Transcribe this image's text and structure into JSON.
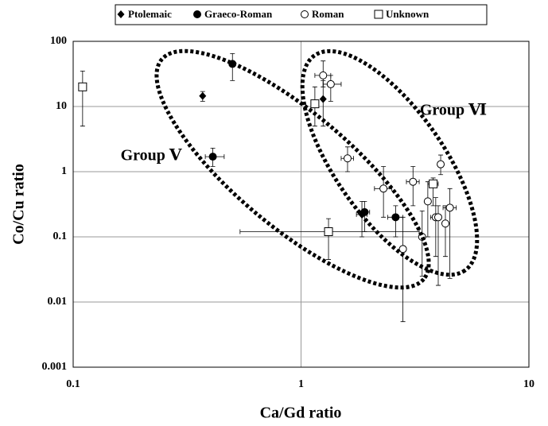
{
  "chart_data": {
    "type": "scatter",
    "xlabel": "Ca/Gd ratio",
    "ylabel": "Co/Cu ratio",
    "xscale": "log",
    "yscale": "log",
    "xlim": [
      0.1,
      10
    ],
    "ylim": [
      0.001,
      100
    ],
    "xticks": [
      0.1,
      1,
      10
    ],
    "yticks": [
      0.001,
      0.01,
      0.1,
      1,
      10,
      100
    ],
    "grid": true,
    "legend": "top",
    "annotations": [
      "Group Ⅴ",
      "Group Ⅵ"
    ],
    "series": [
      {
        "name": "Ptolemaic",
        "marker": "diamond",
        "color": "#000000",
        "x": [
          0.37,
          1.25,
          1.85
        ],
        "values": [
          14.5,
          13,
          0.22
        ],
        "y_low": [
          12,
          5,
          0.1
        ],
        "y_high": [
          17,
          25,
          0.35
        ],
        "x_low": [
          null,
          null,
          1.75
        ],
        "x_high": [
          null,
          null,
          1.95
        ]
      },
      {
        "name": "Graeco-Roman",
        "marker": "circle-filled",
        "color": "#000000",
        "x": [
          0.5,
          0.41,
          1.9,
          2.6
        ],
        "values": [
          45,
          1.7,
          0.24,
          0.2
        ],
        "y_low": [
          25,
          1.2,
          0.12,
          0.1
        ],
        "y_high": [
          65,
          2.3,
          0.35,
          0.3
        ],
        "x_low": [
          null,
          0.38,
          1.8,
          2.4
        ],
        "x_high": [
          null,
          0.46,
          2.0,
          2.8
        ]
      },
      {
        "name": "Roman",
        "marker": "circle-open",
        "color": "#000000",
        "x": [
          1.25,
          1.35,
          1.6,
          2.3,
          2.8,
          3.1,
          3.4,
          3.6,
          3.9,
          4.1,
          4.3,
          4.5,
          4.0
        ],
        "values": [
          30,
          22,
          1.6,
          0.55,
          0.065,
          0.7,
          0.1,
          0.35,
          0.2,
          1.3,
          0.16,
          0.28,
          0.2
        ],
        "y_low": [
          20,
          12,
          1.0,
          0.2,
          0.005,
          0.3,
          0.025,
          0.1,
          0.05,
          0.9,
          0.05,
          0.023,
          0.018
        ],
        "y_high": [
          50,
          30,
          2.4,
          1.2,
          0.2,
          1.2,
          0.25,
          0.7,
          0.4,
          1.8,
          0.3,
          0.55,
          0.3
        ],
        "x_low": [
          1.15,
          1.25,
          1.5,
          2.1,
          null,
          2.9,
          null,
          null,
          3.7,
          null,
          null,
          4.2,
          null
        ],
        "x_high": [
          1.35,
          1.5,
          1.7,
          2.5,
          null,
          3.3,
          null,
          null,
          4.1,
          null,
          null,
          4.8,
          null
        ]
      },
      {
        "name": "Unknown",
        "marker": "square",
        "color": "#000000",
        "x": [
          0.11,
          1.32,
          3.8,
          1.15
        ],
        "values": [
          20,
          0.12,
          0.65,
          11
        ],
        "y_low": [
          5,
          0.045,
          0.3,
          5
        ],
        "y_high": [
          35,
          0.19,
          0.8,
          20
        ],
        "x_low": [
          null,
          0.54,
          3.6,
          null
        ],
        "x_high": [
          null,
          3.3,
          4.0,
          null
        ]
      }
    ]
  }
}
